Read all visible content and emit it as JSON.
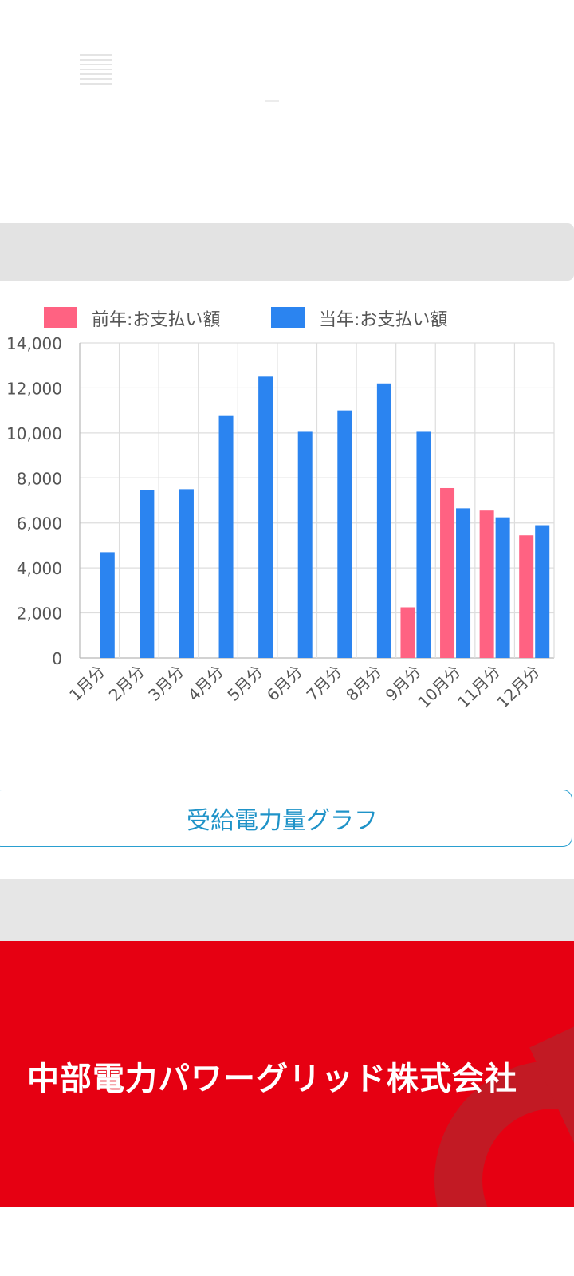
{
  "chart_data": {
    "type": "bar",
    "categories": [
      "1月分",
      "2月分",
      "3月分",
      "4月分",
      "5月分",
      "6月分",
      "7月分",
      "8月分",
      "9月分",
      "10月分",
      "11月分",
      "12月分"
    ],
    "series": [
      {
        "name": "前年:お支払い額",
        "color": "#ff6282",
        "values": [
          null,
          null,
          null,
          null,
          null,
          null,
          null,
          null,
          2250,
          7550,
          6550,
          5450
        ]
      },
      {
        "name": "当年:お支払い額",
        "color": "#2b84f0",
        "values": [
          4700,
          7450,
          7500,
          10750,
          12500,
          10050,
          11000,
          12200,
          10050,
          6650,
          6250,
          5900
        ]
      }
    ],
    "y_ticks": [
      "0",
      "2,000",
      "4,000",
      "6,000",
      "8,000",
      "10,000",
      "12,000",
      "14,000"
    ],
    "ylim": [
      0,
      14000
    ],
    "grid": true,
    "legend_position": "top"
  },
  "buttons": {
    "graph_label": "受給電力量グラフ"
  },
  "footer": {
    "company_name": "中部電力パワーグリッド株式会社",
    "brand_color": "#e60012"
  }
}
